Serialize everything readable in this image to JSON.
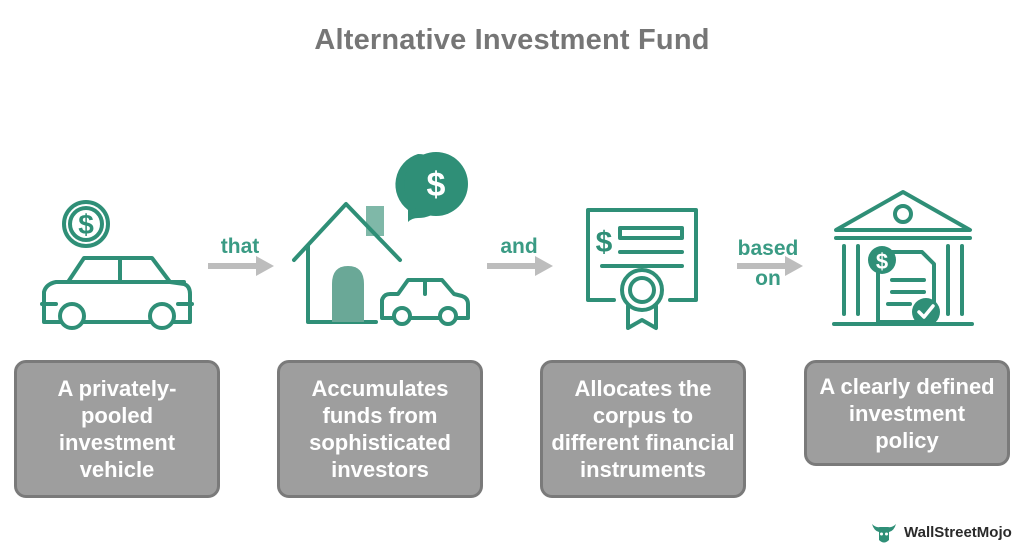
{
  "title": "Alternative Investment Fund",
  "connectors": {
    "that": "that",
    "and": "and",
    "based_on_line1": "based",
    "based_on_line2": "on"
  },
  "steps": [
    {
      "text": "A privately-pooled investment vehicle",
      "icon": "car-with-dollar-icon"
    },
    {
      "text": "Accumulates funds from sophisticated investors",
      "icon": "house-car-dollar-icon"
    },
    {
      "text": "Allocates the corpus to different financial instruments",
      "icon": "certificate-icon"
    },
    {
      "text": "A clearly defined investment policy",
      "icon": "bank-document-icon"
    }
  ],
  "brand": {
    "name": "WallStreetMojo",
    "accent": "#2f8f77",
    "box": "#9e9e9e"
  }
}
